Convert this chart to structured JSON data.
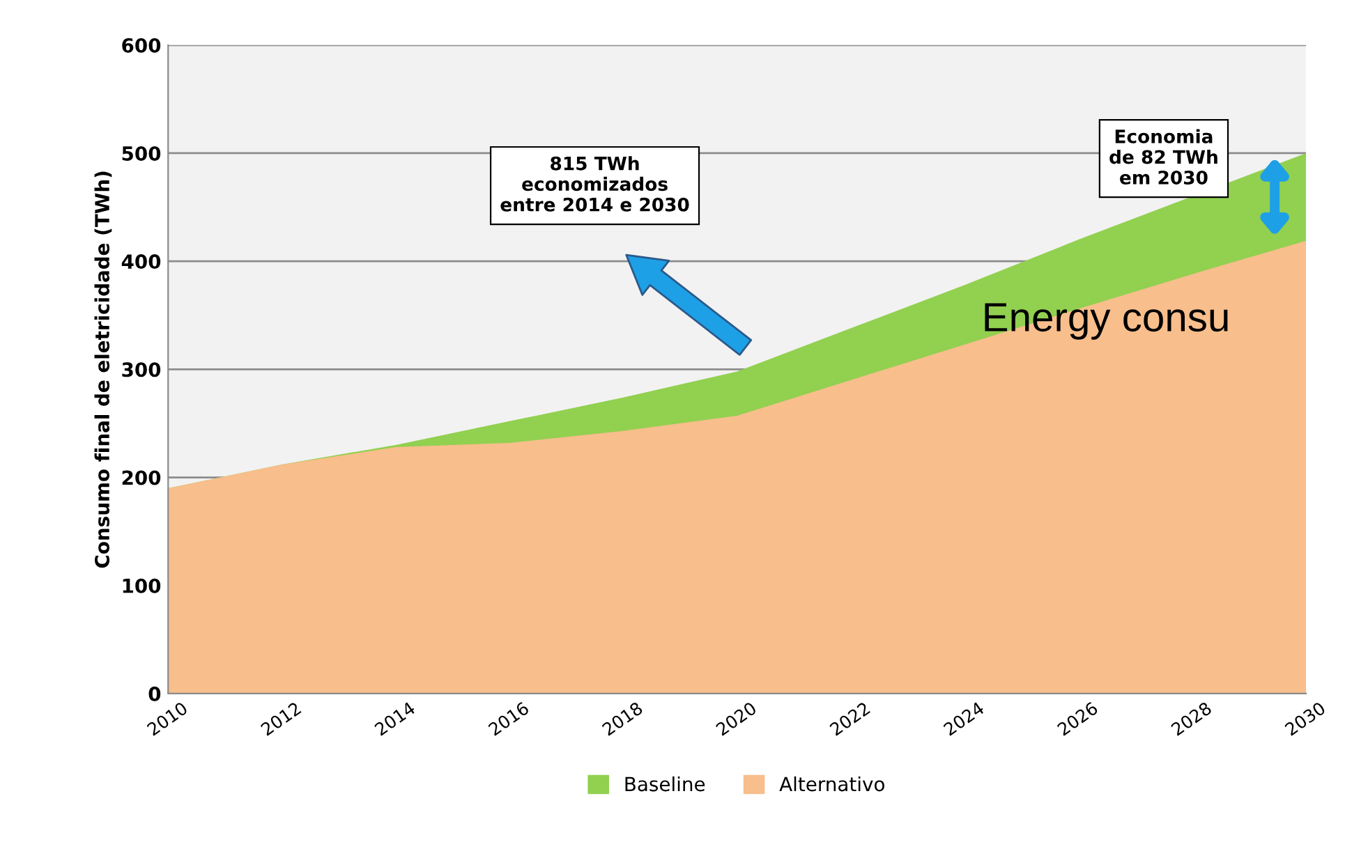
{
  "chart_data": {
    "type": "area",
    "ylabel": "Consumo final de eletricidade (TWh)",
    "x": [
      2010,
      2012,
      2014,
      2016,
      2018,
      2020,
      2022,
      2024,
      2026,
      2028,
      2030
    ],
    "series": [
      {
        "name": "Baseline",
        "color": "#92d050",
        "values": [
          190,
          212,
          230,
          252,
          274,
          298,
          338,
          378,
          420,
          460,
          500
        ]
      },
      {
        "name": "Alternativo",
        "color": "#f8be8c",
        "values": [
          190,
          212,
          228,
          232,
          243,
          257,
          290,
          323,
          356,
          388,
          419
        ]
      }
    ],
    "xlim": [
      2010,
      2030
    ],
    "xticks": [
      2010,
      2012,
      2014,
      2016,
      2018,
      2020,
      2022,
      2024,
      2026,
      2028,
      2030
    ],
    "ylim": [
      0,
      600
    ],
    "yticks": [
      0,
      100,
      200,
      300,
      400,
      500,
      600
    ],
    "grid": "y",
    "legend": "bottom",
    "annotations": [
      "815 TWh\neconomizados\nentre 2014 e 2030",
      "Economia\nde 82 TWh\nem 2030",
      "Energy consu"
    ]
  }
}
